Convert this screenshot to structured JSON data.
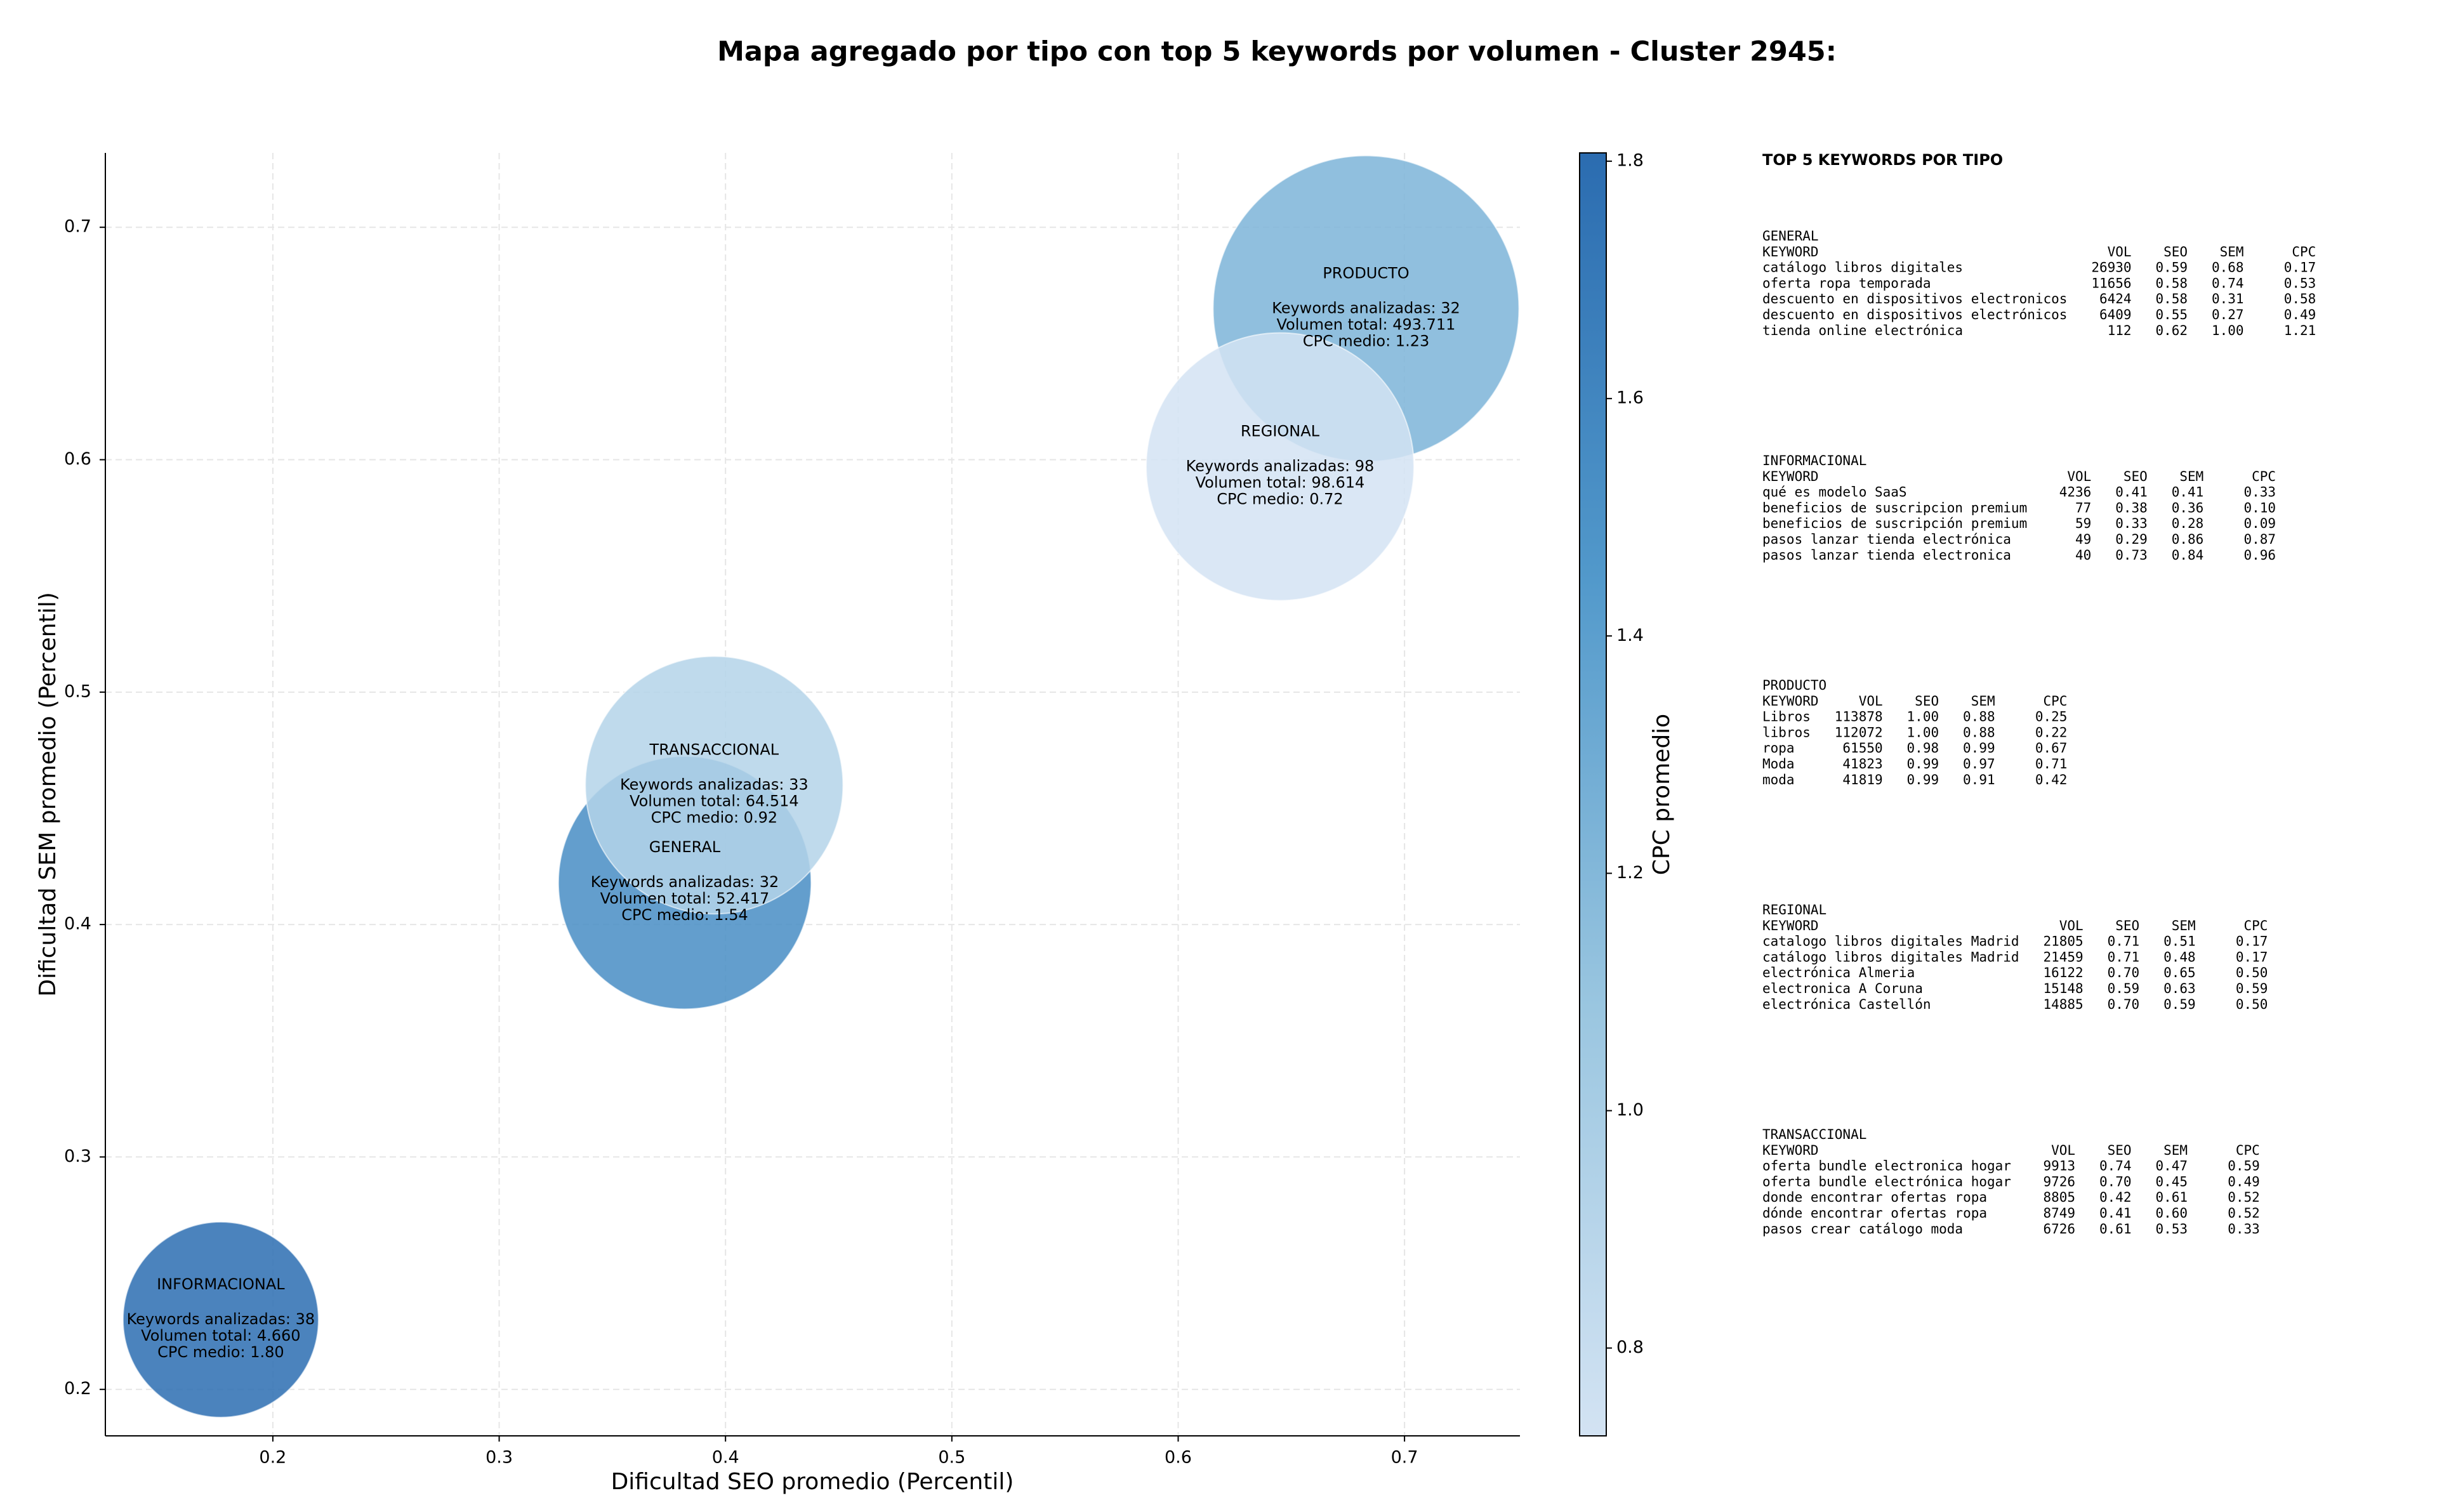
{
  "chart_data": {
    "type": "bubble",
    "title": "Mapa agregado por tipo con top 5 keywords por volumen - Cluster 2945:",
    "xlabel": "Dificultad SEO promedio (Percentil)",
    "ylabel": "Dificultad SEM promedio (Percentil)",
    "xlim": [
      0.126,
      0.751
    ],
    "ylim": [
      0.18,
      0.732
    ],
    "xticks": [
      0.2,
      0.3,
      0.4,
      0.5,
      0.6,
      0.7
    ],
    "yticks": [
      0.2,
      0.3,
      0.4,
      0.5,
      0.6,
      0.7
    ],
    "grid": true,
    "colorbar": {
      "label": "CPC promedio",
      "lim": [
        0.726,
        1.807
      ],
      "ticks": [
        0.8,
        {
          "value": 1,
          "label": "1.0"
        },
        1.2,
        1.4,
        1.6,
        1.8
      ],
      "colormap": [
        "#d3e3f3",
        "#9ac6e0",
        "#5299cb",
        "#2b6cb0"
      ]
    },
    "points": [
      {
        "name": "GENERAL",
        "x": 0.382,
        "y": 0.418,
        "size": 52417,
        "cpc": 1.54,
        "labels": [
          "Keywords analizadas: 32",
          "Volumen total: 52.417",
          "CPC medio: 1.54"
        ]
      },
      {
        "name": "INFORMACIONAL",
        "x": 0.177,
        "y": 0.23,
        "size": 4660,
        "cpc": 1.8,
        "labels": [
          "Keywords analizadas: 38",
          "Volumen total: 4.660",
          "CPC medio: 1.80"
        ]
      },
      {
        "name": "PRODUCTO",
        "x": 0.683,
        "y": 0.665,
        "size": 493711,
        "cpc": 1.23,
        "labels": [
          "Keywords analizadas: 32",
          "Volumen total: 493.711",
          "CPC medio: 1.23"
        ]
      },
      {
        "name": "REGIONAL",
        "x": 0.645,
        "y": 0.597,
        "size": 98614,
        "cpc": 0.72,
        "labels": [
          "Keywords analizadas: 98",
          "Volumen total: 98.614",
          "CPC medio: 0.72"
        ]
      },
      {
        "name": "TRANSACCIONAL",
        "x": 0.395,
        "y": 0.46,
        "size": 64514,
        "cpc": 0.92,
        "labels": [
          "Keywords analizadas: 33",
          "Volumen total: 64.514",
          "CPC medio: 0.92"
        ]
      }
    ],
    "table": {
      "title": "TOP 5 KEYWORDS POR TIPO",
      "columns": [
        "KEYWORD",
        "VOL",
        "SEO",
        "SEM",
        "CPC"
      ],
      "groups": [
        {
          "name": "GENERAL",
          "rows": [
            [
              "catálogo libros digitales",
              "26930",
              "0.59",
              "0.68",
              "0.17"
            ],
            [
              "oferta ropa temporada",
              "11656",
              "0.58",
              "0.74",
              "0.53"
            ],
            [
              "descuento en dispositivos electronicos",
              "6424",
              "0.58",
              "0.31",
              "0.58"
            ],
            [
              "descuento en dispositivos electrónicos",
              "6409",
              "0.55",
              "0.27",
              "0.49"
            ],
            [
              "tienda online electrónica",
              "112",
              "0.62",
              "1.00",
              "1.21"
            ]
          ]
        },
        {
          "name": "INFORMACIONAL",
          "rows": [
            [
              "qué es modelo SaaS",
              "4236",
              "0.41",
              "0.41",
              "0.33"
            ],
            [
              "beneficios de suscripcion premium",
              "77",
              "0.38",
              "0.36",
              "0.10"
            ],
            [
              "beneficios de suscripción premium",
              "59",
              "0.33",
              "0.28",
              "0.09"
            ],
            [
              "pasos lanzar tienda electrónica",
              "49",
              "0.29",
              "0.86",
              "0.87"
            ],
            [
              "pasos lanzar tienda electronica",
              "40",
              "0.73",
              "0.84",
              "0.96"
            ]
          ]
        },
        {
          "name": "PRODUCTO",
          "rows": [
            [
              "Libros",
              "113878",
              "1.00",
              "0.88",
              "0.25"
            ],
            [
              "libros",
              "112072",
              "1.00",
              "0.88",
              "0.22"
            ],
            [
              "ropa",
              "61550",
              "0.98",
              "0.99",
              "0.67"
            ],
            [
              "Moda",
              "41823",
              "0.99",
              "0.97",
              "0.71"
            ],
            [
              "moda",
              "41819",
              "0.99",
              "0.91",
              "0.42"
            ]
          ]
        },
        {
          "name": "REGIONAL",
          "rows": [
            [
              "catalogo libros digitales Madrid",
              "21805",
              "0.71",
              "0.51",
              "0.17"
            ],
            [
              "catálogo libros digitales Madrid",
              "21459",
              "0.71",
              "0.48",
              "0.17"
            ],
            [
              "electrónica Almeria",
              "16122",
              "0.70",
              "0.65",
              "0.50"
            ],
            [
              "electronica A Coruna",
              "15148",
              "0.59",
              "0.63",
              "0.59"
            ],
            [
              "electrónica Castellón",
              "14885",
              "0.70",
              "0.59",
              "0.50"
            ]
          ]
        },
        {
          "name": "TRANSACCIONAL",
          "rows": [
            [
              "oferta bundle electronica hogar",
              "9913",
              "0.74",
              "0.47",
              "0.59"
            ],
            [
              "oferta bundle electrónica hogar",
              "9726",
              "0.70",
              "0.45",
              "0.49"
            ],
            [
              "donde encontrar ofertas ropa",
              "8805",
              "0.42",
              "0.61",
              "0.52"
            ],
            [
              "dónde encontrar ofertas ropa",
              "8749",
              "0.41",
              "0.60",
              "0.52"
            ],
            [
              "pasos crear catálogo moda",
              "6726",
              "0.61",
              "0.53",
              "0.33"
            ]
          ]
        }
      ]
    }
  }
}
